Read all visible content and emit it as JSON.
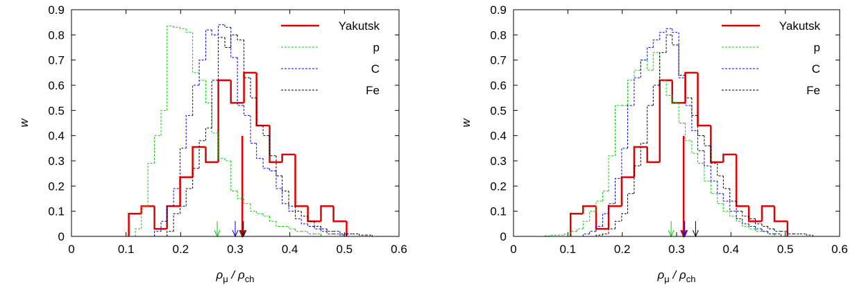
{
  "chart_data": [
    {
      "type": "histogram",
      "xlabel": [
        {
          "text": "ρ"
        },
        {
          "text": "μ",
          "sub": true
        },
        {
          "text": " / ρ"
        },
        {
          "text": "ch",
          "sub": true
        }
      ],
      "ylabel": "w",
      "xlim": [
        0,
        0.6
      ],
      "ylim": [
        0,
        0.9
      ],
      "xticks": [
        0,
        0.1,
        0.2,
        0.3,
        0.4,
        0.5,
        0.6
      ],
      "yticks": [
        0,
        0.1,
        0.2,
        0.3,
        0.4,
        0.5,
        0.6,
        0.7,
        0.8,
        0.9
      ],
      "legend": "upper right",
      "series": [
        {
          "name": "Yakutsk",
          "color": "#e00000",
          "dashed": false,
          "mean": 0.313,
          "bins": [
            0.105,
            0.128,
            0.152,
            0.175,
            0.199,
            0.222,
            0.246,
            0.269,
            0.292,
            0.316,
            0.339,
            0.363,
            0.386,
            0.41,
            0.433,
            0.457,
            0.48,
            0.504
          ],
          "values": [
            0.09,
            0.12,
            0.03,
            0.12,
            0.235,
            0.355,
            0.295,
            0.62,
            0.53,
            0.65,
            0.44,
            0.295,
            0.325,
            0.12,
            0.06,
            0.12,
            0.06
          ]
        },
        {
          "name": "p",
          "color": "#00d000",
          "dashed": true,
          "mean": 0.267,
          "bins": [
            0.105,
            0.117,
            0.128,
            0.14,
            0.152,
            0.164,
            0.175,
            0.187,
            0.199,
            0.21,
            0.222,
            0.234,
            0.246,
            0.257,
            0.269,
            0.281,
            0.292,
            0.304,
            0.316,
            0.328,
            0.339,
            0.351,
            0.363,
            0.375,
            0.386,
            0.398,
            0.41,
            0.421,
            0.433,
            0.445,
            0.457,
            0.468,
            0.48,
            0.492,
            0.504,
            0.515,
            0.527,
            0.539,
            0.551,
            0.562,
            0.574
          ],
          "values": [
            0,
            0.03,
            0.12,
            0.29,
            0.4,
            0.5,
            0.835,
            0.83,
            0.825,
            0.81,
            0.65,
            0.62,
            0.53,
            0.41,
            0.31,
            0.3,
            0.18,
            0.15,
            0.13,
            0.1,
            0.09,
            0.08,
            0.06,
            0.04,
            0.04,
            0.03,
            0.02,
            0.02,
            0.01,
            0.01,
            0,
            0,
            0,
            0,
            0,
            0,
            0,
            0,
            0,
            0
          ]
        },
        {
          "name": "C",
          "color": "#0000e0",
          "dashed": true,
          "mean": 0.3,
          "bins": [
            0.105,
            0.117,
            0.128,
            0.14,
            0.152,
            0.164,
            0.175,
            0.187,
            0.199,
            0.21,
            0.222,
            0.234,
            0.246,
            0.257,
            0.269,
            0.281,
            0.292,
            0.304,
            0.316,
            0.328,
            0.339,
            0.351,
            0.363,
            0.375,
            0.386,
            0.398,
            0.41,
            0.421,
            0.433,
            0.445,
            0.457,
            0.468,
            0.48,
            0.492,
            0.504,
            0.515,
            0.527,
            0.539,
            0.551,
            0.562,
            0.574
          ],
          "values": [
            0,
            0,
            0,
            0,
            0.02,
            0.06,
            0.12,
            0.19,
            0.35,
            0.48,
            0.6,
            0.7,
            0.82,
            0.8,
            0.84,
            0.83,
            0.71,
            0.52,
            0.48,
            0.37,
            0.31,
            0.27,
            0.26,
            0.19,
            0.13,
            0.1,
            0.07,
            0.05,
            0.04,
            0.03,
            0.02,
            0.01,
            0.01,
            0.005,
            0,
            0,
            0,
            0,
            0,
            0
          ]
        },
        {
          "name": "Fe",
          "color": "#000000",
          "dashed": true,
          "mean": 0.315,
          "bins": [
            0.105,
            0.117,
            0.128,
            0.14,
            0.152,
            0.164,
            0.175,
            0.187,
            0.199,
            0.21,
            0.222,
            0.234,
            0.246,
            0.257,
            0.269,
            0.281,
            0.292,
            0.304,
            0.316,
            0.328,
            0.339,
            0.351,
            0.363,
            0.375,
            0.386,
            0.398,
            0.41,
            0.421,
            0.433,
            0.445,
            0.457,
            0.468,
            0.48,
            0.492,
            0.504,
            0.515,
            0.527,
            0.539,
            0.551,
            0.562,
            0.574
          ],
          "values": [
            0,
            0,
            0,
            0,
            0,
            0,
            0.02,
            0.09,
            0.12,
            0.19,
            0.27,
            0.38,
            0.43,
            0.62,
            0.79,
            0.75,
            0.8,
            0.78,
            0.63,
            0.55,
            0.44,
            0.4,
            0.32,
            0.24,
            0.18,
            0.12,
            0.1,
            0.08,
            0.06,
            0.04,
            0.03,
            0.02,
            0.02,
            0.01,
            0.01,
            0.01,
            0.005,
            0.005,
            0,
            0
          ]
        }
      ]
    },
    {
      "type": "histogram",
      "xlabel": [
        {
          "text": "ρ"
        },
        {
          "text": "μ",
          "sub": true
        },
        {
          "text": " / ρ"
        },
        {
          "text": "ch",
          "sub": true
        }
      ],
      "ylabel": "w",
      "xlim": [
        0,
        0.6
      ],
      "ylim": [
        0,
        0.9
      ],
      "xticks": [
        0,
        0.1,
        0.2,
        0.3,
        0.4,
        0.5,
        0.6
      ],
      "yticks": [
        0,
        0.1,
        0.2,
        0.3,
        0.4,
        0.5,
        0.6,
        0.7,
        0.8,
        0.9
      ],
      "legend": "upper right",
      "series": [
        {
          "name": "Yakutsk",
          "color": "#e00000",
          "dashed": false,
          "mean": 0.313,
          "bins": [
            0.105,
            0.128,
            0.152,
            0.175,
            0.199,
            0.222,
            0.246,
            0.269,
            0.292,
            0.316,
            0.339,
            0.363,
            0.386,
            0.41,
            0.433,
            0.457,
            0.48,
            0.504
          ],
          "values": [
            0.09,
            0.12,
            0.03,
            0.12,
            0.235,
            0.355,
            0.295,
            0.62,
            0.53,
            0.65,
            0.44,
            0.295,
            0.325,
            0.12,
            0.06,
            0.12,
            0.06
          ]
        },
        {
          "name": "p",
          "color": "#00d000",
          "dashed": true,
          "mean": 0.29,
          "bins": [
            0.035,
            0.047,
            0.058,
            0.07,
            0.082,
            0.094,
            0.105,
            0.117,
            0.128,
            0.14,
            0.152,
            0.164,
            0.175,
            0.187,
            0.199,
            0.21,
            0.222,
            0.234,
            0.246,
            0.257,
            0.269,
            0.281,
            0.292,
            0.304,
            0.316,
            0.328,
            0.339,
            0.351,
            0.363,
            0.375,
            0.386,
            0.398,
            0.41,
            0.421,
            0.433,
            0.445,
            0.457,
            0.468,
            0.48,
            0.492,
            0.504,
            0.515,
            0.527,
            0.539,
            0.551,
            0.562,
            0.574
          ],
          "values": [
            0,
            0,
            0.002,
            0.005,
            0.005,
            0.01,
            0.02,
            0.03,
            0.06,
            0.1,
            0.14,
            0.18,
            0.32,
            0.52,
            0.52,
            0.62,
            0.66,
            0.7,
            0.66,
            0.73,
            0.62,
            0.56,
            0.53,
            0.45,
            0.38,
            0.33,
            0.29,
            0.22,
            0.17,
            0.13,
            0.1,
            0.08,
            0.06,
            0.04,
            0.03,
            0.02,
            0.02,
            0.01,
            0,
            0,
            0,
            0,
            0,
            0,
            0,
            0
          ]
        },
        {
          "name": "C",
          "color": "#0000e0",
          "dashed": true,
          "mean": 0.315,
          "bins": [
            0.035,
            0.047,
            0.058,
            0.07,
            0.082,
            0.094,
            0.105,
            0.117,
            0.128,
            0.14,
            0.152,
            0.164,
            0.175,
            0.187,
            0.199,
            0.21,
            0.222,
            0.234,
            0.246,
            0.257,
            0.269,
            0.281,
            0.292,
            0.304,
            0.316,
            0.328,
            0.339,
            0.351,
            0.363,
            0.375,
            0.386,
            0.398,
            0.41,
            0.421,
            0.433,
            0.445,
            0.457,
            0.468,
            0.48,
            0.492,
            0.504,
            0.515,
            0.527,
            0.539,
            0.551,
            0.562,
            0.574
          ],
          "values": [
            0,
            0,
            0,
            0,
            0,
            0,
            0,
            0,
            0.01,
            0.02,
            0.04,
            0.09,
            0.13,
            0.23,
            0.35,
            0.52,
            0.63,
            0.7,
            0.75,
            0.78,
            0.81,
            0.825,
            0.81,
            0.63,
            0.52,
            0.42,
            0.34,
            0.28,
            0.22,
            0.17,
            0.14,
            0.1,
            0.07,
            0.05,
            0.04,
            0.03,
            0.02,
            0.01,
            0.01,
            0,
            0,
            0,
            0,
            0,
            0,
            0
          ]
        },
        {
          "name": "Fe",
          "color": "#000000",
          "dashed": true,
          "mean": 0.335,
          "bins": [
            0.035,
            0.047,
            0.058,
            0.07,
            0.082,
            0.094,
            0.105,
            0.117,
            0.128,
            0.14,
            0.152,
            0.164,
            0.175,
            0.187,
            0.199,
            0.21,
            0.222,
            0.234,
            0.246,
            0.257,
            0.269,
            0.281,
            0.292,
            0.304,
            0.316,
            0.328,
            0.339,
            0.351,
            0.363,
            0.375,
            0.386,
            0.398,
            0.41,
            0.421,
            0.433,
            0.445,
            0.457,
            0.468,
            0.48,
            0.492,
            0.504,
            0.515,
            0.527,
            0.539,
            0.551,
            0.562,
            0.574
          ],
          "values": [
            0,
            0,
            0,
            0,
            0,
            0,
            0,
            0,
            0,
            0,
            0.005,
            0.01,
            0.03,
            0.06,
            0.09,
            0.17,
            0.28,
            0.37,
            0.52,
            0.6,
            0.73,
            0.8,
            0.76,
            0.64,
            0.55,
            0.48,
            0.4,
            0.36,
            0.29,
            0.24,
            0.19,
            0.14,
            0.1,
            0.08,
            0.07,
            0.05,
            0.04,
            0.03,
            0.02,
            0.02,
            0.01,
            0.01,
            0.01,
            0.005,
            0,
            0
          ]
        }
      ]
    }
  ]
}
